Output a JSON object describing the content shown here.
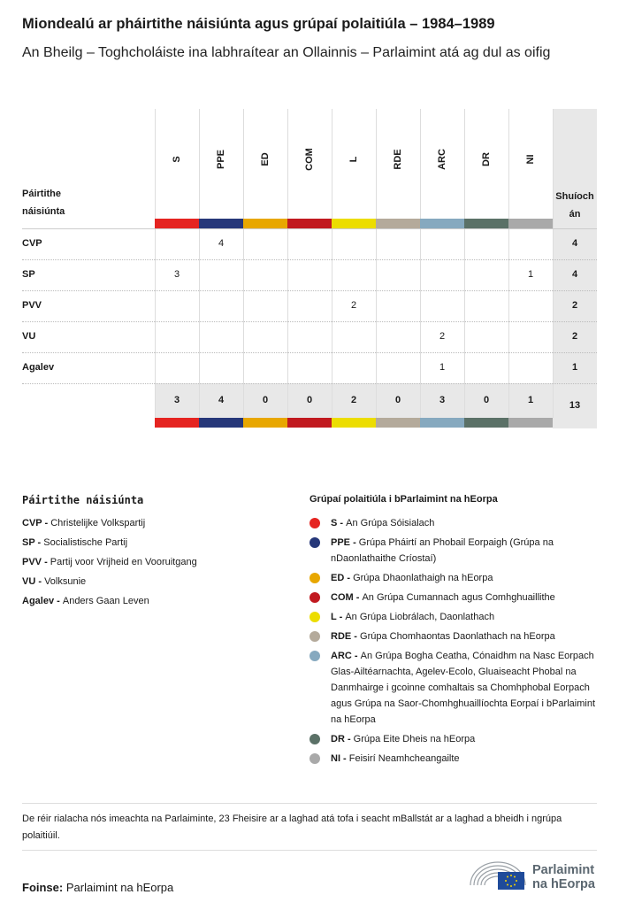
{
  "header": {
    "title": "Miondealú ar pháirtithe náisiúnta agus grúpaí polaitiúla – 1984–1989",
    "subtitle": "An Bheilg – Toghcholáiste ina labhraítear an Ollainnis – Parlaimint atá ag dul as oifig"
  },
  "chart_data": {
    "type": "table",
    "row_header": "Páirtithe náisiúnta",
    "total_header": "Shuíochán",
    "columns": [
      {
        "code": "S",
        "color": "#e52421"
      },
      {
        "code": "PPE",
        "color": "#263779"
      },
      {
        "code": "ED",
        "color": "#e8a700"
      },
      {
        "code": "COM",
        "color": "#c1191f"
      },
      {
        "code": "L",
        "color": "#ecdd00"
      },
      {
        "code": "RDE",
        "color": "#b4aa9b"
      },
      {
        "code": "ARC",
        "color": "#86a9bf"
      },
      {
        "code": "DR",
        "color": "#5b7167"
      },
      {
        "code": "NI",
        "color": "#a9a9a9"
      }
    ],
    "rows": [
      {
        "party": "CVP",
        "values": [
          null,
          4,
          null,
          null,
          null,
          null,
          null,
          null,
          null
        ],
        "total": 4
      },
      {
        "party": "SP",
        "values": [
          3,
          null,
          null,
          null,
          null,
          null,
          null,
          null,
          1
        ],
        "total": 4
      },
      {
        "party": "PVV",
        "values": [
          null,
          null,
          null,
          null,
          2,
          null,
          null,
          null,
          null
        ],
        "total": 2
      },
      {
        "party": "VU",
        "values": [
          null,
          null,
          null,
          null,
          null,
          null,
          2,
          null,
          null
        ],
        "total": 2
      },
      {
        "party": "Agalev",
        "values": [
          null,
          null,
          null,
          null,
          null,
          null,
          1,
          null,
          null
        ],
        "total": 1
      }
    ],
    "column_totals": [
      3,
      4,
      0,
      0,
      2,
      0,
      3,
      0,
      1
    ],
    "grand_total": 13
  },
  "legend_parties": {
    "title": "Páirtithe náisiúnta",
    "items": [
      {
        "code": "CVP",
        "name": "Christelijke Volkspartij"
      },
      {
        "code": "SP",
        "name": "Socialistische Partij"
      },
      {
        "code": "PVV",
        "name": "Partij voor Vrijheid en Vooruitgang"
      },
      {
        "code": "VU",
        "name": "Volksunie"
      },
      {
        "code": "Agalev",
        "name": "Anders Gaan Leven"
      }
    ]
  },
  "legend_groups": {
    "title": "Grúpaí polaitiúla i bParlaimint na hEorpa",
    "items": [
      {
        "code": "S",
        "name": "An Grúpa Sóisialach"
      },
      {
        "code": "PPE",
        "name": "Grúpa Pháirtí an Phobail Eorpaigh (Grúpa na nDaonlathaithe Críostaí)"
      },
      {
        "code": "ED",
        "name": "Grúpa Dhaonlathaigh na hEorpa"
      },
      {
        "code": "COM",
        "name": "An Grúpa Cumannach agus Comhghuaillithe"
      },
      {
        "code": "L",
        "name": "An Grúpa Liobrálach, Daonlathach"
      },
      {
        "code": "RDE",
        "name": "Grúpa Chomhaontas Daonlathach na hEorpa"
      },
      {
        "code": "ARC",
        "name": "An Grúpa Bogha Ceatha, Cónaidhm na Nasc Eorpach Glas-Ailtéarnachta, Agelev-Ecolo, Gluaiseacht Phobal na Danmhairge i gcoinne comhaltais sa Chomhphobal Eorpach agus Grúpa na Saor-Chomhghuaillíochta Eorpaí i bParlaimint na hEorpa"
      },
      {
        "code": "DR",
        "name": "Grúpa Eite Dheis na hEorpa"
      },
      {
        "code": "NI",
        "name": "Feisirí Neamhcheangailte"
      }
    ]
  },
  "footnote": "De réir rialacha nós imeachta na Parlaiminte, 23 Fheisire ar a laghad atá tofa i seacht mBallstát ar a laghad a bheidh i ngrúpa polaitiúil.",
  "source": {
    "label": "Foinse:",
    "value": "Parlaimint na hEorpa"
  },
  "logo": {
    "text": "Parlaimint na hEorpa"
  }
}
